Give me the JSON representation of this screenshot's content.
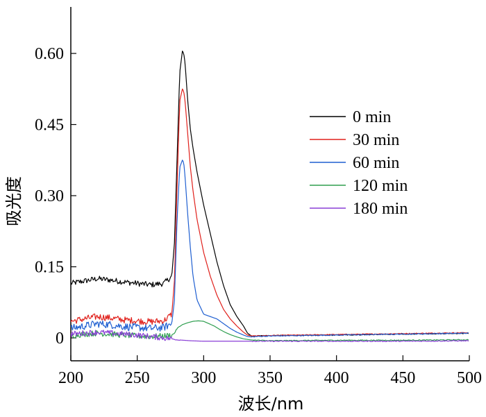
{
  "chart_data": {
    "type": "line",
    "title": "",
    "xlabel": "波长/nm",
    "ylabel": "吸光度",
    "xlim": [
      200,
      500
    ],
    "ylim": [
      -0.05,
      0.7
    ],
    "x_ticks": [
      200,
      250,
      300,
      350,
      400,
      450,
      500
    ],
    "y_ticks": [
      0,
      0.15,
      0.3,
      0.45,
      0.6
    ],
    "x_tick_labels": [
      "200",
      "250",
      "300",
      "350",
      "400",
      "450",
      "500"
    ],
    "y_tick_labels": [
      "0",
      "0.15",
      "0.30",
      "0.45",
      "0.60"
    ],
    "legend_position": "right",
    "grid": false,
    "series": [
      {
        "name": "0 min",
        "color": "#000000",
        "x": [
          200,
          210,
          220,
          230,
          240,
          250,
          260,
          270,
          276,
          278,
          280,
          282,
          284,
          285,
          286,
          288,
          290,
          292,
          295,
          300,
          305,
          310,
          315,
          320,
          325,
          330,
          333,
          336,
          340,
          350,
          400,
          450,
          500
        ],
        "y": [
          0.115,
          0.12,
          0.125,
          0.122,
          0.118,
          0.115,
          0.112,
          0.115,
          0.13,
          0.2,
          0.38,
          0.56,
          0.605,
          0.6,
          0.58,
          0.5,
          0.44,
          0.4,
          0.35,
          0.28,
          0.22,
          0.16,
          0.11,
          0.07,
          0.045,
          0.025,
          0.01,
          0.004,
          0.004,
          0.005,
          0.006,
          0.008,
          0.01
        ]
      },
      {
        "name": "30 min",
        "color": "#e0201b",
        "x": [
          200,
          210,
          220,
          230,
          240,
          250,
          260,
          270,
          276,
          278,
          280,
          282,
          284,
          285,
          286,
          288,
          290,
          292,
          295,
          300,
          305,
          310,
          315,
          320,
          325,
          330,
          333,
          336,
          340,
          350,
          400,
          450,
          500
        ],
        "y": [
          0.035,
          0.04,
          0.045,
          0.042,
          0.038,
          0.036,
          0.034,
          0.036,
          0.05,
          0.12,
          0.32,
          0.5,
          0.525,
          0.52,
          0.5,
          0.43,
          0.36,
          0.31,
          0.25,
          0.18,
          0.13,
          0.09,
          0.06,
          0.04,
          0.025,
          0.012,
          0.006,
          0.004,
          0.004,
          0.005,
          0.007,
          0.009,
          0.011
        ]
      },
      {
        "name": "60 min",
        "color": "#1f5fd1",
        "x": [
          200,
          210,
          220,
          230,
          240,
          250,
          260,
          270,
          276,
          278,
          280,
          282,
          284,
          285,
          286,
          288,
          290,
          292,
          295,
          300,
          305,
          310,
          315,
          320,
          325,
          330,
          333,
          336,
          340,
          350,
          400,
          450,
          500
        ],
        "y": [
          0.02,
          0.025,
          0.03,
          0.028,
          0.024,
          0.022,
          0.02,
          0.022,
          0.03,
          0.08,
          0.25,
          0.36,
          0.375,
          0.37,
          0.34,
          0.26,
          0.19,
          0.13,
          0.08,
          0.05,
          0.045,
          0.04,
          0.03,
          0.02,
          0.012,
          0.006,
          0.003,
          0.002,
          0.003,
          0.004,
          0.006,
          0.008,
          0.01
        ]
      },
      {
        "name": "120 min",
        "color": "#2e9e4f",
        "x": [
          200,
          210,
          220,
          230,
          240,
          250,
          260,
          270,
          276,
          278,
          280,
          284,
          288,
          292,
          296,
          300,
          304,
          308,
          312,
          316,
          320,
          325,
          330,
          335,
          340,
          350,
          400,
          450,
          500
        ],
        "y": [
          0.005,
          0.008,
          0.01,
          0.008,
          0.006,
          0.004,
          0.003,
          0.004,
          0.006,
          0.01,
          0.02,
          0.028,
          0.032,
          0.035,
          0.036,
          0.035,
          0.03,
          0.025,
          0.018,
          0.012,
          0.007,
          0.002,
          -0.002,
          -0.004,
          -0.005,
          -0.006,
          -0.005,
          -0.005,
          -0.004
        ]
      },
      {
        "name": "180 min",
        "color": "#8a3fd6",
        "x": [
          200,
          210,
          220,
          230,
          240,
          250,
          260,
          270,
          276,
          278,
          280,
          290,
          300,
          320,
          350,
          400,
          450,
          500
        ],
        "y": [
          0.008,
          0.01,
          0.012,
          0.01,
          0.008,
          0.006,
          0.003,
          0.0,
          -0.002,
          -0.003,
          -0.004,
          -0.006,
          -0.007,
          -0.007,
          -0.007,
          -0.007,
          -0.007,
          -0.006
        ]
      }
    ]
  }
}
